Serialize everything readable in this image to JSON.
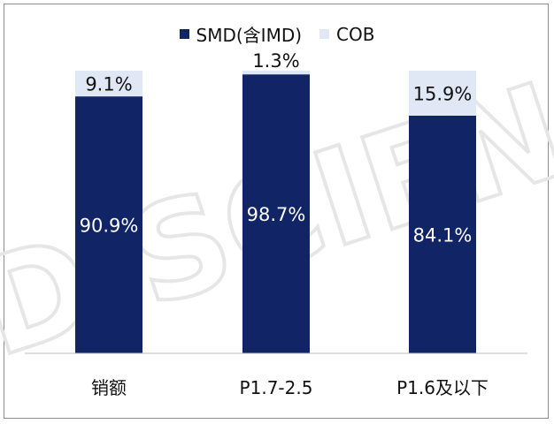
{
  "chart_data": {
    "type": "bar",
    "stacked": true,
    "categories": [
      "销额",
      "P1.7-2.5",
      "P1.6及以下"
    ],
    "series": [
      {
        "name": "SMD(含IMD)",
        "color": "#102466",
        "values": [
          90.9,
          98.7,
          84.1
        ],
        "labels": [
          "90.9%",
          "98.7%",
          "84.1%"
        ]
      },
      {
        "name": "COB",
        "color": "#dfe8f4",
        "values": [
          9.1,
          1.3,
          15.9
        ],
        "labels": [
          "9.1%",
          "1.3%",
          "15.9%"
        ]
      }
    ],
    "ylim": [
      0,
      100
    ],
    "unit": "%",
    "grid": false,
    "legend_position": "top",
    "watermark": "DISCIEN"
  }
}
